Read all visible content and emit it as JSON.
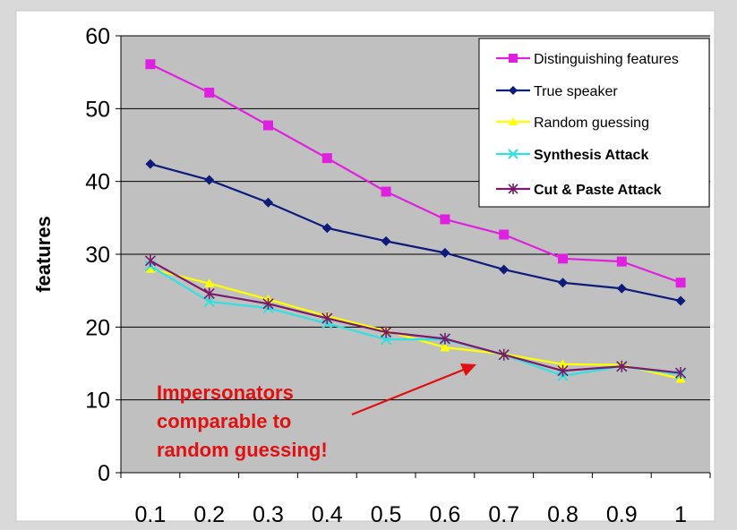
{
  "chart_data": {
    "type": "line",
    "title": "",
    "xlabel": "",
    "ylabel": "features",
    "ylim": [
      0,
      60
    ],
    "yticks": [
      0,
      10,
      20,
      30,
      40,
      50,
      60
    ],
    "categories": [
      "0.1",
      "0.2",
      "0.3",
      "0.4",
      "0.5",
      "0.6",
      "0.7",
      "0.8",
      "0.9",
      "1"
    ],
    "grid": "horizontal",
    "legend": "top-right",
    "series": [
      {
        "name": "Distinguishing features",
        "color": "#e020e0",
        "marker": "square",
        "values": [
          56.1,
          52.2,
          47.7,
          43.2,
          38.6,
          34.8,
          32.7,
          29.4,
          29.0,
          26.1
        ]
      },
      {
        "name": "True speaker",
        "color": "#0d1b7a",
        "marker": "diamond",
        "values": [
          42.4,
          40.2,
          37.1,
          33.6,
          31.8,
          30.2,
          27.9,
          26.1,
          25.3,
          23.6
        ]
      },
      {
        "name": "Random guessing",
        "color": "#ffff00",
        "marker": "triangle",
        "values": [
          28.0,
          26.0,
          23.8,
          21.5,
          19.5,
          17.2,
          16.3,
          14.9,
          14.8,
          12.9
        ]
      },
      {
        "name": "Synthesis Attack",
        "color": "#33e0e0",
        "marker": "x",
        "values": [
          28.4,
          23.5,
          22.6,
          20.5,
          18.3,
          18.3,
          16.2,
          13.3,
          14.6,
          13.5
        ]
      },
      {
        "name": "Cut & Paste Attack",
        "color": "#7a1a6a",
        "marker": "asterisk",
        "values": [
          29.1,
          24.6,
          23.2,
          21.2,
          19.3,
          18.4,
          16.2,
          14.0,
          14.6,
          13.7
        ]
      }
    ],
    "annotation": {
      "lines": [
        "Impersonators",
        "comparable to",
        "random guessing!"
      ],
      "color": "#e01010"
    }
  }
}
